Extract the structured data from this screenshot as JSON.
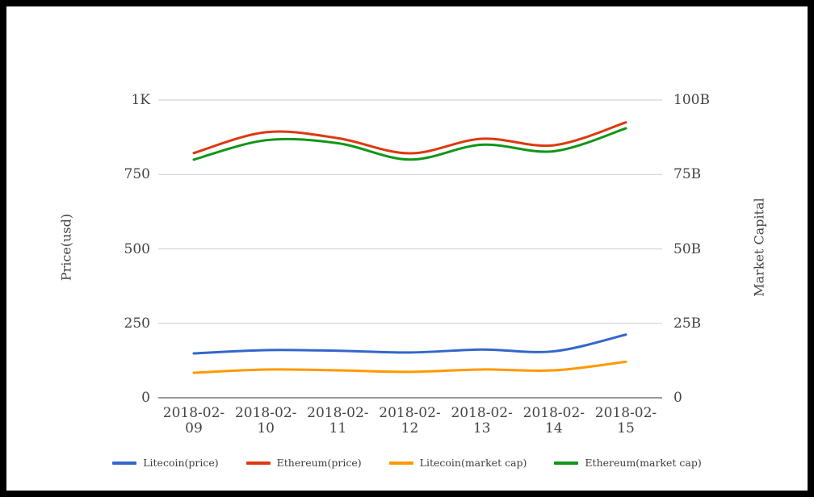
{
  "chart_data": {
    "type": "line",
    "title": "",
    "xlabel": "",
    "ylabel_left": "Price(usd)",
    "ylabel_right": "Market Capital",
    "x": [
      "2018-02-09",
      "2018-02-10",
      "2018-02-11",
      "2018-02-12",
      "2018-02-13",
      "2018-02-14",
      "2018-02-15"
    ],
    "series": [
      {
        "name": "Litecoin(price)",
        "axis": "left",
        "color": "#3366cc",
        "values": [
          149,
          160,
          158,
          152,
          162,
          156,
          212
        ]
      },
      {
        "name": "Ethereum(price)",
        "axis": "left",
        "color": "#dc3912",
        "values": [
          822,
          892,
          872,
          821,
          870,
          848,
          925
        ]
      },
      {
        "name": "Litecoin(market cap)",
        "axis": "right",
        "color": "#ff9900",
        "values": [
          8.4,
          9.5,
          9.2,
          8.7,
          9.5,
          9.2,
          12.1
        ]
      },
      {
        "name": "Ethereum(market cap)",
        "axis": "right",
        "color": "#109618",
        "values": [
          80,
          86.5,
          85.5,
          80,
          85,
          82.8,
          90.5
        ]
      }
    ],
    "left_axis": {
      "title": "Price(usd)",
      "ticks": [
        {
          "label": "1K",
          "value": 1000
        },
        {
          "label": "750",
          "value": 750
        },
        {
          "label": "500",
          "value": 500
        },
        {
          "label": "250",
          "value": 250
        },
        {
          "label": "0",
          "value": 0
        }
      ],
      "lim": [
        0,
        1000
      ]
    },
    "right_axis": {
      "title": "Market Capital",
      "ticks": [
        {
          "label": "100B",
          "value": 100
        },
        {
          "label": "75B",
          "value": 75
        },
        {
          "label": "50B",
          "value": 50
        },
        {
          "label": "25B",
          "value": 25
        },
        {
          "label": "0",
          "value": 0
        }
      ],
      "lim": [
        0,
        100
      ]
    },
    "grid": true,
    "legend_position": "bottom",
    "curve": "smooth",
    "colors": {
      "gridline": "#cccccc",
      "baseline": "#333333",
      "tick_text": "#444444",
      "legend_text": "#3d3d3d",
      "frame_border": "#000000"
    }
  }
}
